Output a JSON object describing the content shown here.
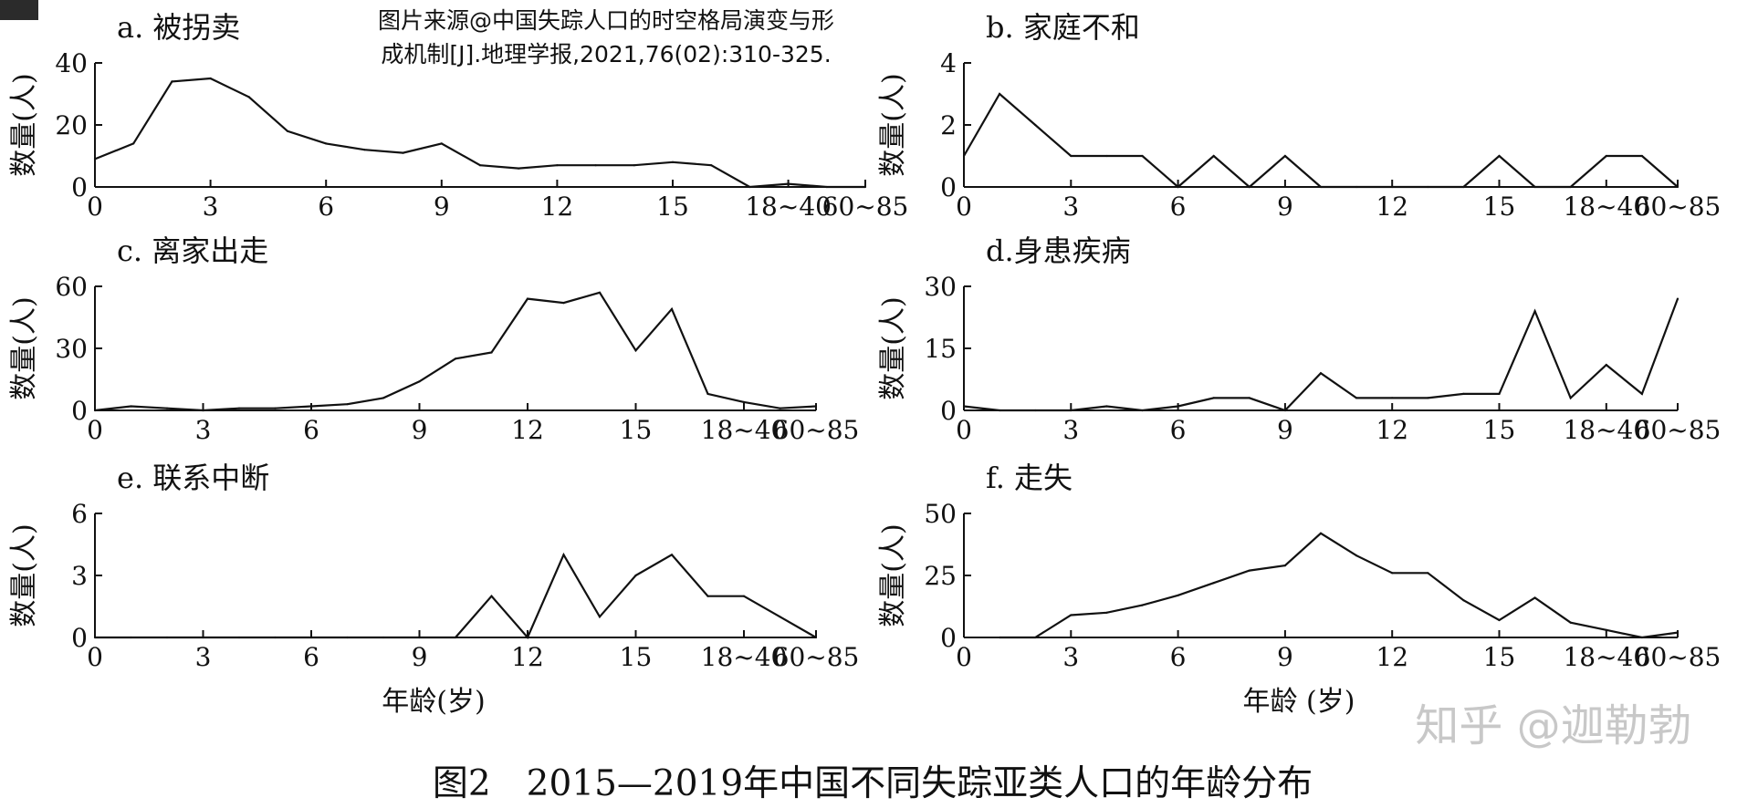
{
  "source_note": [
    "图片来源@中国失踪人口的时空格局演变与形",
    "成机制[J].地理学报,2021,76(02):310-325."
  ],
  "watermark": "知乎 @迦勒勃",
  "figure_caption": "图2　2015—2019年中国不同失踪亚类人口的年龄分布",
  "colors": {
    "line": "#111111",
    "text": "#111111",
    "watermark": "#c8c8c8"
  },
  "chart_data": [
    {
      "type": "line",
      "title": "a. 被拐卖",
      "ylabel": "数量(人)",
      "xlabel": "",
      "ylim": [
        0,
        40
      ],
      "yticks": [
        0,
        20,
        40
      ],
      "xticks": [
        "0",
        "3",
        "6",
        "9",
        "12",
        "15",
        "18~40",
        "60~85"
      ],
      "x": [
        0,
        1,
        2,
        3,
        4,
        5,
        6,
        7,
        8,
        9,
        10,
        11,
        12,
        13,
        14,
        15,
        16,
        17,
        18,
        19,
        20
      ],
      "values": [
        9,
        14,
        34,
        35,
        29,
        18,
        14,
        12,
        11,
        14,
        7,
        6,
        7,
        7,
        7,
        8,
        7,
        0,
        1,
        0,
        0
      ]
    },
    {
      "type": "line",
      "title": "b. 家庭不和",
      "ylabel": "数量(人)",
      "xlabel": "",
      "ylim": [
        0,
        4
      ],
      "yticks": [
        0,
        2,
        4
      ],
      "xticks": [
        "0",
        "3",
        "6",
        "9",
        "12",
        "15",
        "18~40",
        "60~85"
      ],
      "x": [
        0,
        1,
        2,
        3,
        4,
        5,
        6,
        7,
        8,
        9,
        10,
        11,
        12,
        13,
        14,
        15,
        16,
        17,
        18,
        19,
        20
      ],
      "values": [
        1,
        3,
        2,
        1,
        1,
        1,
        0,
        1,
        0,
        1,
        0,
        0,
        0,
        0,
        0,
        1,
        0,
        0,
        1,
        1,
        0
      ]
    },
    {
      "type": "line",
      "title": "c. 离家出走",
      "ylabel": "数量(人)",
      "xlabel": "",
      "ylim": [
        0,
        60
      ],
      "yticks": [
        0,
        30,
        60
      ],
      "xticks": [
        "0",
        "3",
        "6",
        "9",
        "12",
        "15",
        "18~40",
        "60~85"
      ],
      "x": [
        0,
        1,
        2,
        3,
        4,
        5,
        6,
        7,
        8,
        9,
        10,
        11,
        12,
        13,
        14,
        15,
        16,
        17,
        18,
        19,
        20
      ],
      "values": [
        0,
        2,
        1,
        0,
        1,
        1,
        2,
        3,
        6,
        14,
        25,
        28,
        54,
        52,
        57,
        29,
        49,
        8,
        4,
        1,
        2
      ]
    },
    {
      "type": "line",
      "title": "d.身患疾病",
      "ylabel": "数量(人)",
      "xlabel": "",
      "ylim": [
        0,
        30
      ],
      "yticks": [
        0,
        15,
        30
      ],
      "xticks": [
        "0",
        "3",
        "6",
        "9",
        "12",
        "15",
        "18~40",
        "60~85"
      ],
      "x": [
        0,
        1,
        2,
        3,
        4,
        5,
        6,
        7,
        8,
        9,
        10,
        11,
        12,
        13,
        14,
        15,
        16,
        17,
        18,
        19,
        20
      ],
      "values": [
        1,
        0,
        0,
        0,
        1,
        0,
        1,
        3,
        3,
        0,
        9,
        3,
        3,
        3,
        4,
        4,
        24,
        3,
        11,
        4,
        27
      ]
    },
    {
      "type": "line",
      "title": "e. 联系中断",
      "ylabel": "数量(人)",
      "xlabel": "年龄(岁)",
      "ylim": [
        0,
        6
      ],
      "yticks": [
        0,
        3,
        6
      ],
      "xticks": [
        "0",
        "3",
        "6",
        "9",
        "12",
        "15",
        "18~40",
        "60~85"
      ],
      "x": [
        0,
        1,
        2,
        3,
        4,
        5,
        6,
        7,
        8,
        9,
        10,
        11,
        12,
        13,
        14,
        15,
        16,
        17,
        18,
        19,
        20
      ],
      "values": [
        0,
        0,
        0,
        0,
        0,
        0,
        0,
        0,
        0,
        0,
        0,
        2,
        0,
        4,
        1,
        3,
        4,
        2,
        2,
        1,
        0
      ]
    },
    {
      "type": "line",
      "title": "f. 走失",
      "ylabel": "数量(人)",
      "xlabel": "年龄 (岁)",
      "ylim": [
        0,
        50
      ],
      "yticks": [
        0,
        25,
        50
      ],
      "xticks": [
        "0",
        "3",
        "6",
        "9",
        "12",
        "15",
        "18~40",
        "60~85"
      ],
      "x": [
        1,
        2,
        3,
        4,
        5,
        6,
        7,
        8,
        9,
        10,
        11,
        12,
        13,
        14,
        15,
        16,
        17,
        18,
        19,
        20
      ],
      "values": [
        0,
        0,
        9,
        10,
        13,
        17,
        22,
        27,
        29,
        42,
        33,
        26,
        26,
        15,
        7,
        16,
        6,
        3,
        0,
        2
      ]
    }
  ]
}
